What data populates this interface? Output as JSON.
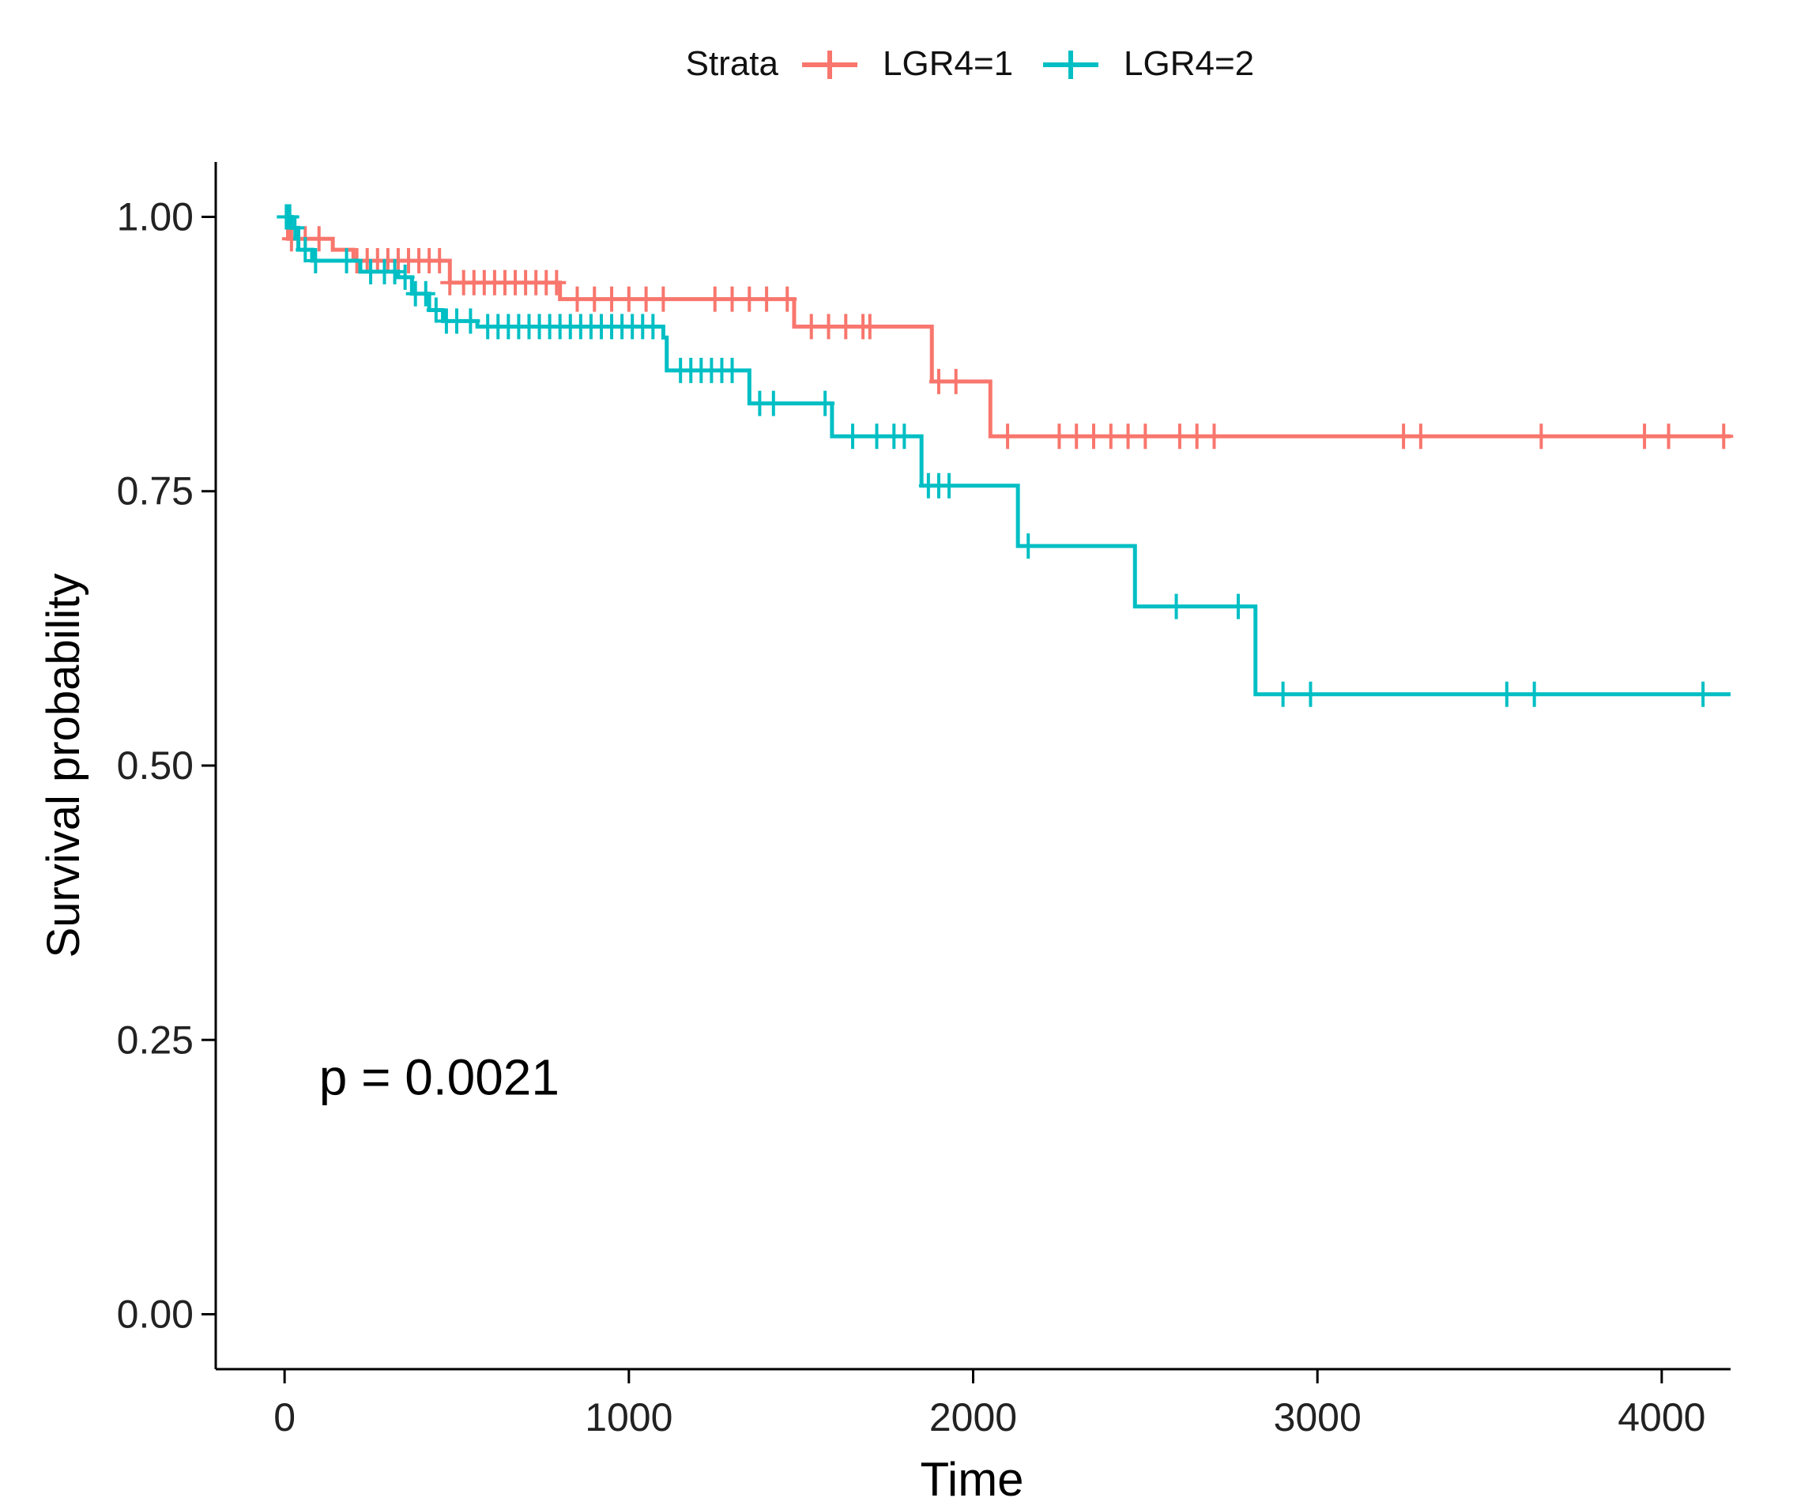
{
  "chart_data": {
    "type": "line",
    "xlabel": "Time",
    "ylabel": "Survival probability",
    "xlim": [
      -200,
      4200
    ],
    "ylim": [
      -0.05,
      1.05
    ],
    "x_ticks": [
      0,
      1000,
      2000,
      3000,
      4000
    ],
    "x_tick_labels": [
      "0",
      "1000",
      "2000",
      "3000",
      "4000"
    ],
    "y_ticks": [
      0,
      0.25,
      0.5,
      0.75,
      1.0
    ],
    "y_tick_labels": [
      "0.00",
      "0.25",
      "0.50",
      "0.75",
      "1.00"
    ],
    "grid": false,
    "legend": {
      "title": "Strata",
      "placement": "top"
    },
    "annotation": "p = 0.0021",
    "annotation_pos": [
      100,
      0.2
    ],
    "series": [
      {
        "name": "LGR4=1",
        "color": "#F8766D",
        "steps": [
          [
            0,
            1.0
          ],
          [
            10,
            0.98
          ],
          [
            140,
            0.97
          ],
          [
            200,
            0.96
          ],
          [
            480,
            0.94
          ],
          [
            800,
            0.925
          ],
          [
            1480,
            0.9
          ],
          [
            1880,
            0.85
          ],
          [
            2050,
            0.8
          ],
          [
            4200,
            0.8
          ]
        ],
        "censored": [
          20,
          60,
          100,
          210,
          240,
          270,
          300,
          330,
          360,
          390,
          420,
          450,
          480,
          520,
          550,
          580,
          610,
          640,
          670,
          700,
          730,
          760,
          790,
          850,
          900,
          950,
          1000,
          1050,
          1100,
          1250,
          1300,
          1350,
          1400,
          1460,
          1530,
          1580,
          1630,
          1680,
          1700,
          1900,
          1950,
          2100,
          2250,
          2300,
          2350,
          2400,
          2450,
          2500,
          2600,
          2650,
          2700,
          3250,
          3300,
          3650,
          3950,
          4020,
          4180
        ]
      },
      {
        "name": "LGR4=2",
        "color": "#00BFC4",
        "steps": [
          [
            0,
            1.0
          ],
          [
            20,
            0.99
          ],
          [
            40,
            0.97
          ],
          [
            80,
            0.96
          ],
          [
            220,
            0.95
          ],
          [
            330,
            0.945
          ],
          [
            370,
            0.93
          ],
          [
            420,
            0.915
          ],
          [
            460,
            0.905
          ],
          [
            560,
            0.9
          ],
          [
            1100,
            0.89
          ],
          [
            1110,
            0.86
          ],
          [
            1350,
            0.83
          ],
          [
            1590,
            0.8
          ],
          [
            1850,
            0.755
          ],
          [
            2130,
            0.7
          ],
          [
            2470,
            0.645
          ],
          [
            2820,
            0.565
          ],
          [
            4200,
            0.565
          ]
        ],
        "censored": [
          5,
          10,
          15,
          30,
          60,
          90,
          180,
          250,
          290,
          320,
          350,
          380,
          410,
          440,
          470,
          500,
          540,
          590,
          620,
          650,
          680,
          710,
          740,
          770,
          800,
          830,
          860,
          890,
          920,
          950,
          980,
          1010,
          1040,
          1070,
          1150,
          1180,
          1210,
          1240,
          1270,
          1300,
          1380,
          1420,
          1570,
          1650,
          1720,
          1770,
          1800,
          1870,
          1900,
          1930,
          2160,
          2590,
          2770,
          2900,
          2980,
          3550,
          3630,
          4120
        ]
      }
    ]
  }
}
